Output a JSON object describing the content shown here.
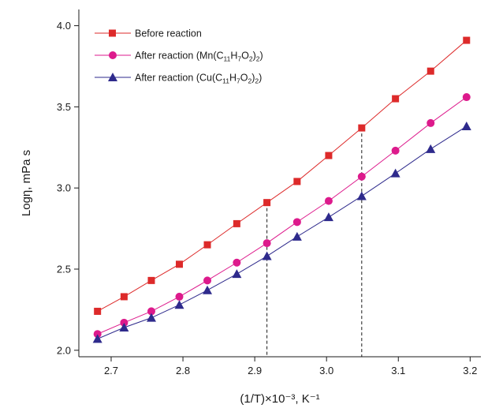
{
  "chart_data": {
    "type": "line",
    "xlabel": "(1/T)×10⁻³, K⁻¹",
    "ylabel": "Logη, mPa s",
    "xlim": [
      2.655,
      3.215
    ],
    "ylim": [
      1.96,
      4.1
    ],
    "x_ticks": [
      2.7,
      2.8,
      2.9,
      3.0,
      3.1,
      3.2
    ],
    "x_tick_labels": [
      "2.7",
      "2.8",
      "2.9",
      "3.0",
      "3.1",
      "3.2"
    ],
    "y_ticks": [
      2.0,
      2.5,
      3.0,
      3.5,
      4.0
    ],
    "y_tick_labels": [
      "2.0",
      "2.5",
      "3.0",
      "3.5",
      "4.0"
    ],
    "legend_position": "top-left",
    "grid": false,
    "x": [
      2.681,
      2.718,
      2.756,
      2.795,
      2.834,
      2.875,
      2.917,
      2.959,
      3.003,
      3.049,
      3.096,
      3.145,
      3.195
    ],
    "series": [
      {
        "name": "Before reaction",
        "marker": "square",
        "color": "#dd2a2a",
        "values": [
          2.24,
          2.33,
          2.43,
          2.53,
          2.65,
          2.78,
          2.91,
          3.04,
          3.2,
          3.37,
          3.55,
          3.72,
          3.91
        ]
      },
      {
        "name": "After reaction (Mn(C₁₁H₇O₂)₂)",
        "marker": "circle",
        "color": "#dd1a8c",
        "values": [
          2.1,
          2.17,
          2.24,
          2.33,
          2.43,
          2.54,
          2.66,
          2.79,
          2.92,
          3.07,
          3.23,
          3.4,
          3.56
        ]
      },
      {
        "name": "After reaction (Cu(C₁₁H₇O₂)₂)",
        "marker": "triangle",
        "color": "#2e2a8c",
        "values": [
          2.07,
          2.14,
          2.2,
          2.28,
          2.37,
          2.47,
          2.58,
          2.7,
          2.82,
          2.95,
          3.09,
          3.24,
          3.38
        ]
      }
    ],
    "reference_lines": [
      {
        "x": 2.917,
        "style": "dashed",
        "from_y": 2.91
      },
      {
        "x": 3.049,
        "style": "dashed",
        "from_y": 3.37
      }
    ]
  }
}
